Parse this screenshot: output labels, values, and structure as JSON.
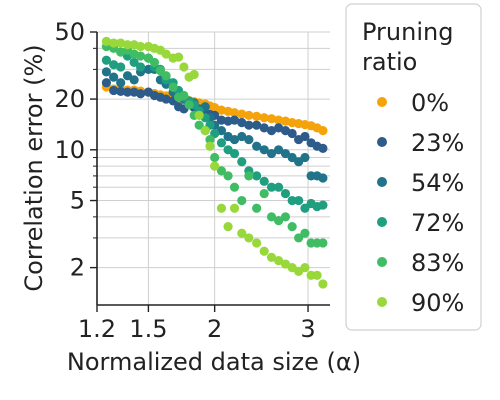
{
  "chart_data": {
    "type": "scatter",
    "xlabel": "Normalized data size (α)",
    "ylabel": "Correlation error (%)",
    "x_scale": "log",
    "y_scale": "log",
    "xlim": [
      1.2,
      3.3
    ],
    "ylim": [
      1.2,
      50
    ],
    "x_ticks": [
      1.2,
      1.5,
      2,
      3
    ],
    "x_tick_labels": [
      "1.2",
      "1.5",
      "2",
      "3"
    ],
    "y_ticks": [
      2,
      5,
      10,
      20,
      50
    ],
    "y_tick_labels": [
      "2",
      "5",
      "10",
      "20",
      "50"
    ],
    "grid": true,
    "legend": {
      "title": "Pruning ratio",
      "placement": "outside-right"
    },
    "series": [
      {
        "name": "0%",
        "color": "#f5a30a",
        "x": [
          1.25,
          1.29,
          1.33,
          1.37,
          1.41,
          1.45,
          1.5,
          1.54,
          1.58,
          1.62,
          1.67,
          1.71,
          1.75,
          1.79,
          1.83,
          1.87,
          1.92,
          1.96,
          2.0,
          2.06,
          2.12,
          2.18,
          2.25,
          2.32,
          2.4,
          2.48,
          2.56,
          2.64,
          2.72,
          2.8,
          2.88,
          2.96,
          3.04,
          3.12,
          3.2
        ],
        "y": [
          23.6,
          22.9,
          22.9,
          22.6,
          22.6,
          22.3,
          22.0,
          21.6,
          21.2,
          20.9,
          20.6,
          20.3,
          19.9,
          19.6,
          19.3,
          19.0,
          18.7,
          18.2,
          17.8,
          17.2,
          16.9,
          16.6,
          16.3,
          16.0,
          15.8,
          15.5,
          15.3,
          15.0,
          14.8,
          14.5,
          14.3,
          14.1,
          13.9,
          13.5,
          13.0
        ]
      },
      {
        "name": "23%",
        "color": "#2e5c8a",
        "x": [
          1.25,
          1.29,
          1.33,
          1.37,
          1.41,
          1.45,
          1.5,
          1.54,
          1.58,
          1.62,
          1.67,
          1.71,
          1.75,
          1.79,
          1.83,
          1.87,
          1.92,
          1.96,
          2.0,
          2.06,
          2.12,
          2.18,
          2.25,
          2.32,
          2.4,
          2.48,
          2.56,
          2.64,
          2.72,
          2.8,
          2.88,
          2.96,
          3.04,
          3.12,
          3.2
        ],
        "y": [
          25.0,
          22.5,
          22.2,
          22.0,
          22.0,
          21.5,
          22.0,
          21.0,
          20.5,
          20.0,
          19.5,
          18.0,
          17.5,
          18.5,
          17.8,
          17.0,
          16.5,
          16.2,
          16.0,
          15.0,
          14.8,
          15.0,
          14.5,
          14.0,
          14.0,
          13.5,
          13.0,
          13.5,
          13.0,
          12.5,
          11.5,
          12.0,
          11.0,
          10.5,
          10.2
        ]
      },
      {
        "name": "54%",
        "color": "#21738a",
        "x": [
          1.25,
          1.29,
          1.33,
          1.37,
          1.41,
          1.45,
          1.5,
          1.54,
          1.58,
          1.62,
          1.67,
          1.71,
          1.75,
          1.79,
          1.83,
          1.87,
          1.92,
          1.96,
          2.0,
          2.06,
          2.12,
          2.18,
          2.25,
          2.32,
          2.4,
          2.48,
          2.56,
          2.64,
          2.72,
          2.8,
          2.88,
          2.96,
          3.04,
          3.12,
          3.2
        ],
        "y": [
          29.0,
          27.0,
          25.0,
          27.5,
          26.0,
          29.0,
          30.0,
          30.0,
          26.0,
          24.5,
          22.0,
          22.0,
          20.0,
          19.0,
          19.0,
          17.5,
          18.0,
          15.5,
          14.0,
          13.0,
          12.0,
          11.5,
          12.0,
          11.5,
          10.5,
          10.0,
          9.5,
          10.0,
          9.5,
          9.0,
          8.5,
          9.0,
          7.0,
          7.0,
          6.8
        ]
      },
      {
        "name": "72%",
        "color": "#1f9e80",
        "x": [
          1.25,
          1.29,
          1.33,
          1.37,
          1.41,
          1.45,
          1.5,
          1.54,
          1.58,
          1.62,
          1.67,
          1.71,
          1.75,
          1.79,
          1.83,
          1.87,
          1.92,
          1.96,
          2.0,
          2.06,
          2.12,
          2.18,
          2.25,
          2.32,
          2.4,
          2.48,
          2.56,
          2.64,
          2.72,
          2.8,
          2.88,
          2.96,
          3.04,
          3.12,
          3.2
        ],
        "y": [
          34.0,
          32.0,
          31.0,
          36.0,
          33.0,
          31.0,
          35.0,
          31.0,
          30.0,
          26.0,
          25.0,
          22.5,
          20.5,
          19.5,
          18.5,
          17.0,
          15.5,
          14.0,
          12.5,
          11.0,
          10.0,
          9.5,
          8.5,
          7.5,
          7.0,
          6.5,
          6.0,
          6.0,
          5.5,
          5.0,
          5.0,
          4.5,
          4.8,
          4.6,
          4.7
        ]
      },
      {
        "name": "83%",
        "color": "#40bd64",
        "x": [
          1.25,
          1.29,
          1.33,
          1.37,
          1.41,
          1.45,
          1.5,
          1.54,
          1.58,
          1.62,
          1.67,
          1.71,
          1.75,
          1.79,
          1.83,
          1.87,
          1.92,
          1.96,
          2.0,
          2.06,
          2.12,
          2.18,
          2.25,
          2.32,
          2.4,
          2.48,
          2.56,
          2.64,
          2.72,
          2.8,
          2.88,
          2.96,
          3.04,
          3.12,
          3.2
        ],
        "y": [
          41.0,
          40.0,
          38.0,
          39.0,
          37.0,
          36.0,
          35.0,
          33.0,
          29.5,
          27.5,
          23.5,
          20.5,
          21.0,
          18.5,
          16.0,
          14.0,
          13.0,
          11.5,
          9.0,
          7.5,
          7.0,
          6.0,
          5.0,
          7.0,
          4.5,
          5.5,
          4.0,
          3.8,
          4.0,
          3.5,
          3.0,
          3.2,
          2.8,
          2.8,
          2.8
        ]
      },
      {
        "name": "90%",
        "color": "#98d83a",
        "x": [
          1.25,
          1.29,
          1.33,
          1.37,
          1.41,
          1.45,
          1.5,
          1.54,
          1.58,
          1.62,
          1.67,
          1.71,
          1.75,
          1.79,
          1.83,
          1.87,
          1.92,
          1.96,
          2.0,
          2.06,
          2.12,
          2.18,
          2.25,
          2.32,
          2.4,
          2.48,
          2.56,
          2.64,
          2.72,
          2.8,
          2.88,
          2.96,
          3.04,
          3.12,
          3.2
        ],
        "y": [
          44.0,
          43.0,
          43.0,
          42.0,
          42.0,
          41.0,
          41.0,
          40.0,
          39.0,
          37.0,
          35.0,
          35.5,
          31.0,
          27.0,
          28.0,
          16.0,
          13.0,
          10.5,
          8.0,
          4.5,
          3.5,
          4.5,
          3.2,
          3.0,
          2.8,
          2.5,
          2.3,
          2.2,
          2.1,
          2.0,
          1.9,
          2.0,
          1.8,
          1.8,
          1.6
        ]
      }
    ]
  }
}
